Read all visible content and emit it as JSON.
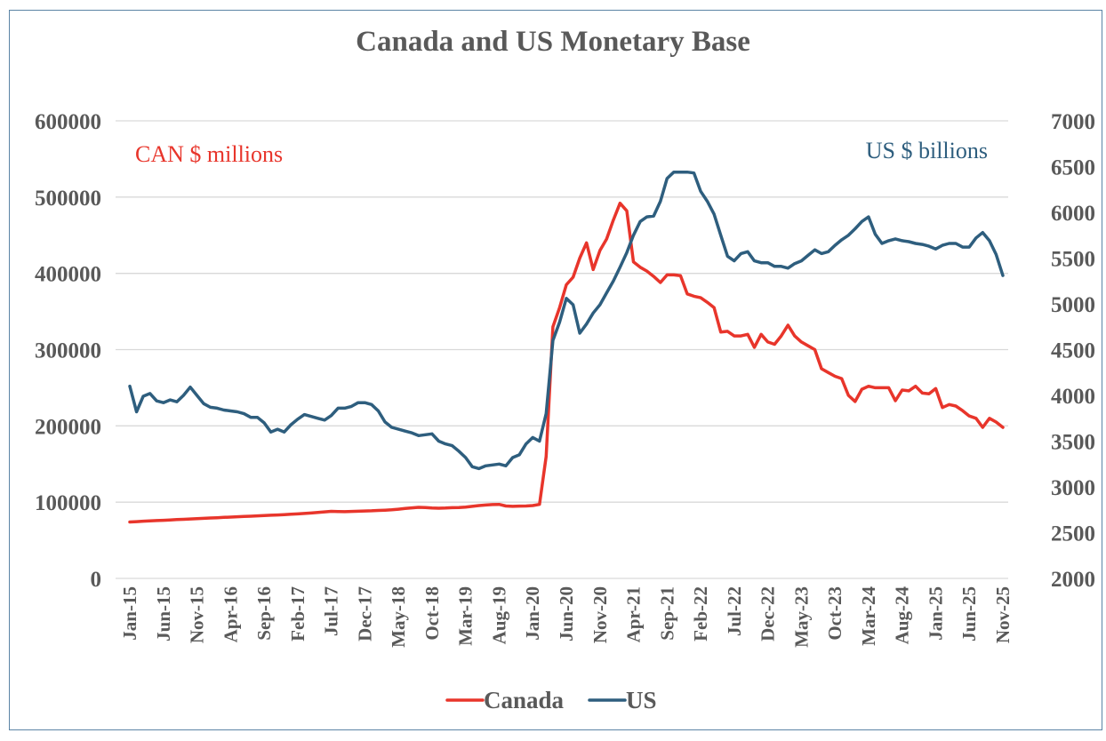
{
  "chart_data": {
    "type": "line",
    "title": "Canada and US Monetary Base",
    "xlabel": "",
    "ylabel_left": "",
    "ylabel_right": "",
    "annotations": {
      "left": "CAN $ millions",
      "right": "US $ billions"
    },
    "left_axis": {
      "ylim": [
        0,
        600000
      ],
      "ticks": [
        0,
        100000,
        200000,
        300000,
        400000,
        500000,
        600000
      ],
      "tick_labels": [
        "0",
        "100000",
        "200000",
        "300000",
        "400000",
        "500000",
        "600000"
      ]
    },
    "right_axis": {
      "ylim": [
        2000,
        7000
      ],
      "ticks": [
        2000,
        2500,
        3000,
        3500,
        4000,
        4500,
        5000,
        5500,
        6000,
        6500,
        7000
      ],
      "tick_labels": [
        "2000",
        "2500",
        "3000",
        "3500",
        "4000",
        "4500",
        "5000",
        "5500",
        "6000",
        "6500",
        "7000"
      ]
    },
    "x_range": [
      "Jan-15",
      "Nov-25"
    ],
    "x_tick_labels": [
      "Jan-15",
      "Jun-15",
      "Nov-15",
      "Apr-16",
      "Sep-16",
      "Feb-17",
      "Jul-17",
      "Dec-17",
      "May-18",
      "Oct-18",
      "Mar-19",
      "Aug-19",
      "Jan-20",
      "Jun-20",
      "Nov-20",
      "Apr-21",
      "Sep-21",
      "Feb-22",
      "Jul-22",
      "Dec-22",
      "May-23",
      "Oct-23",
      "Mar-24",
      "Aug-24",
      "Jan-25",
      "Jun-25",
      "Nov-25"
    ],
    "x_tick_every_months": 5,
    "grid": true,
    "legend_position": "bottom",
    "series": [
      {
        "name": "Canada",
        "axis": "left",
        "color": "#e8352b",
        "values": [
          74000,
          74500,
          75000,
          75400,
          75800,
          76200,
          76700,
          77100,
          77500,
          77900,
          78300,
          78700,
          79200,
          79600,
          80000,
          80400,
          80800,
          81200,
          81600,
          82000,
          82400,
          82800,
          83200,
          83600,
          84100,
          84600,
          85200,
          85800,
          86500,
          87300,
          88000,
          87700,
          87500,
          87800,
          88100,
          88400,
          88700,
          89100,
          89500,
          90000,
          90800,
          91700,
          92500,
          93200,
          92800,
          92300,
          92000,
          92300,
          92700,
          93000,
          93500,
          94500,
          95500,
          96200,
          96800,
          97000,
          95000,
          94500,
          94800,
          95000,
          95500,
          97000,
          160000,
          330000,
          355000,
          385000,
          395000,
          420000,
          440000,
          405000,
          430000,
          445000,
          470000,
          492000,
          482000,
          415000,
          408000,
          403000,
          396000,
          388000,
          398000,
          398000,
          397000,
          373000,
          370000,
          368000,
          362000,
          355000,
          323000,
          324000,
          318000,
          318000,
          320000,
          303000,
          320000,
          310000,
          307000,
          318000,
          332000,
          318000,
          310000,
          305000,
          300000,
          275000,
          270000,
          265000,
          262000,
          240000,
          232000,
          248000,
          252000,
          250000,
          250000,
          250000,
          233000,
          247000,
          246000,
          252000,
          243000,
          242000,
          249000,
          224000,
          228000,
          226000,
          220000,
          213000,
          210000,
          198000,
          210000,
          205000,
          198000
        ]
      },
      {
        "name": "US",
        "axis": "right",
        "color": "#2e5e7e",
        "values": [
          4100,
          3820,
          3990,
          4020,
          3940,
          3920,
          3950,
          3930,
          4000,
          4090,
          4000,
          3910,
          3870,
          3860,
          3840,
          3830,
          3820,
          3800,
          3760,
          3760,
          3700,
          3600,
          3630,
          3600,
          3680,
          3740,
          3790,
          3770,
          3750,
          3730,
          3780,
          3860,
          3860,
          3880,
          3920,
          3920,
          3900,
          3830,
          3710,
          3650,
          3630,
          3610,
          3590,
          3560,
          3570,
          3580,
          3500,
          3470,
          3450,
          3390,
          3320,
          3220,
          3200,
          3230,
          3240,
          3250,
          3230,
          3320,
          3350,
          3470,
          3540,
          3500,
          3800,
          4600,
          4800,
          5060,
          4990,
          4680,
          4780,
          4900,
          4990,
          5120,
          5250,
          5400,
          5560,
          5750,
          5900,
          5950,
          5960,
          6120,
          6370,
          6440,
          6440,
          6440,
          6430,
          6230,
          6120,
          5980,
          5750,
          5520,
          5470,
          5550,
          5570,
          5470,
          5450,
          5450,
          5410,
          5410,
          5390,
          5440,
          5470,
          5530,
          5590,
          5550,
          5570,
          5640,
          5700,
          5750,
          5820,
          5900,
          5950,
          5760,
          5660,
          5690,
          5710,
          5690,
          5680,
          5660,
          5650,
          5630,
          5600,
          5640,
          5660,
          5660,
          5620,
          5620,
          5720,
          5780,
          5690,
          5540,
          5310
        ]
      }
    ]
  }
}
